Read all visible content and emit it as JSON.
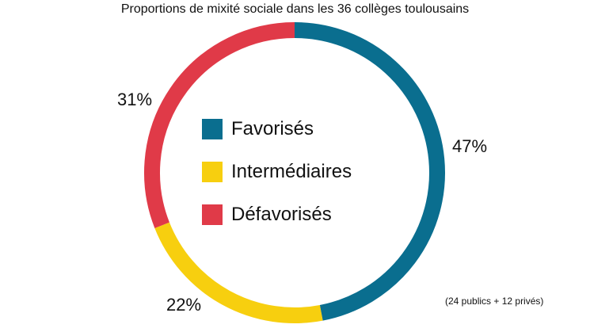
{
  "chart_data": {
    "type": "pie",
    "style": "donut",
    "title": "Proportions de mixité sociale dans les 36 collèges toulousains",
    "note": "(24 publics + 12 privés)",
    "slices": [
      {
        "label": "Favorisés",
        "value": 47,
        "display": "47%",
        "color": "#0a6e8f"
      },
      {
        "label": "Intermédiaires",
        "value": 22,
        "display": "22%",
        "color": "#f7cf0f"
      },
      {
        "label": "Défavorisés",
        "value": 31,
        "display": "31%",
        "color": "#e03a48"
      }
    ],
    "legend_position": "center"
  }
}
